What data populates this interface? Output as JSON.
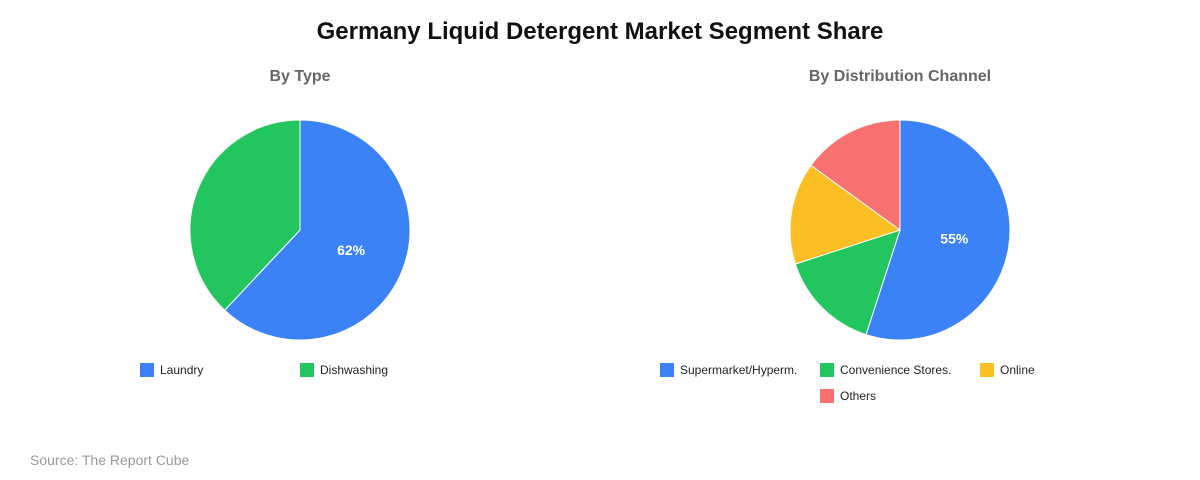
{
  "title": "Germany Liquid Detergent Market Segment Share",
  "source": "Source: The Report Cube",
  "chart_data": [
    {
      "type": "pie",
      "title": "By Type",
      "categories": [
        "Laundry",
        "Dishwashing"
      ],
      "values": [
        62,
        38
      ],
      "colors": [
        "#3b82f6",
        "#22c55e"
      ],
      "data_labels": [
        "62%",
        ""
      ],
      "legend": "bottom"
    },
    {
      "type": "pie",
      "title": "By Distribution Channel",
      "categories": [
        "Supermarket/Hyperm.",
        "Convenience Stores.",
        "Online",
        "Others"
      ],
      "values": [
        55,
        15,
        15,
        15
      ],
      "colors": [
        "#3b82f6",
        "#22c55e",
        "#fbbf24",
        "#f87171"
      ],
      "data_labels": [
        "55%",
        "",
        "",
        ""
      ],
      "legend": "bottom"
    }
  ]
}
